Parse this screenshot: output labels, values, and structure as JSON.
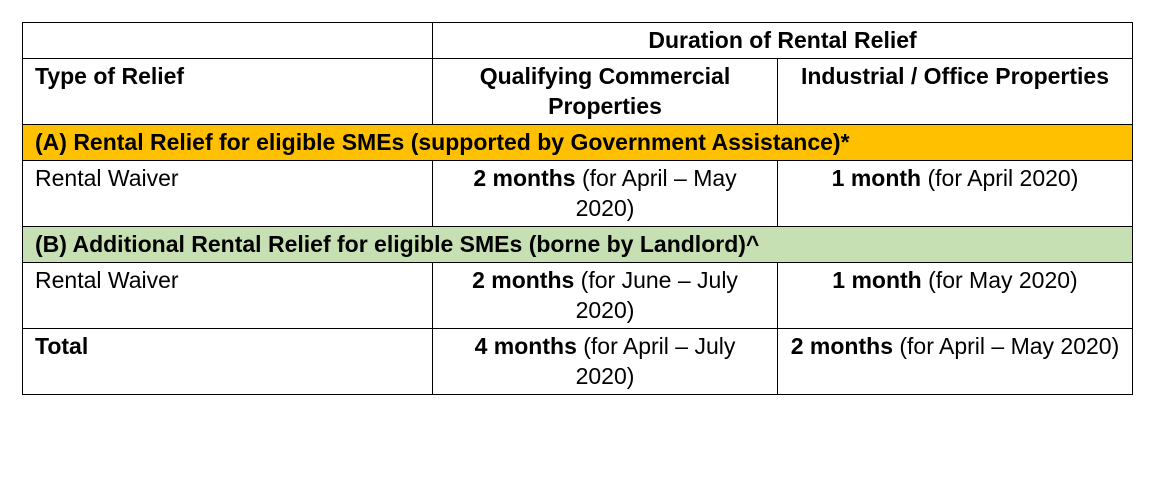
{
  "table": {
    "header": {
      "group_label": "Duration of Rental Relief",
      "type_label": "Type of Relief",
      "col_commercial": "Qualifying Commercial Properties",
      "col_industrial": "Industrial / Office Properties"
    },
    "section_a": {
      "label": "(A) Rental Relief for eligible SMEs (supported by Government Assistance)*",
      "row": {
        "type": "Rental Waiver",
        "commercial_strong": "2 months",
        "commercial_rest": " (for April – May 2020)",
        "industrial_strong": "1 month",
        "industrial_rest": " (for April 2020)"
      }
    },
    "section_b": {
      "label": "(B) Additional Rental Relief for eligible SMEs (borne by Landlord)^",
      "row": {
        "type": "Rental Waiver",
        "commercial_strong": "2 months",
        "commercial_rest": " (for June – July 2020)",
        "industrial_strong": "1 month",
        "industrial_rest": " (for May 2020)"
      }
    },
    "total": {
      "label": "Total",
      "commercial_strong": "4 months",
      "commercial_rest": " (for April – July 2020)",
      "industrial_strong": "2 months",
      "industrial_rest": " (for April – May 2020)"
    },
    "colors": {
      "section_a_bg": "#ffc000",
      "section_b_bg": "#c6e0b4",
      "border": "#000000"
    }
  }
}
